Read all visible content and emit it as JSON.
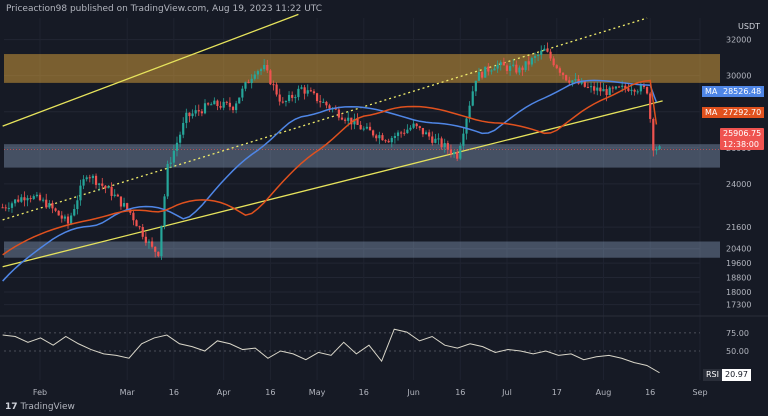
{
  "header": {
    "published": "Priceaction98 published on TradingView.com, Aug 19, 2023 11:22 UTC"
  },
  "logo": {
    "mark": "17",
    "text": "TradingView"
  },
  "colors": {
    "background": "#161a25",
    "candle_up": "#26a69a",
    "candle_down": "#ef5350",
    "ma_fast": "#4f86e6",
    "ma_slow": "#e0511e",
    "channel": "#e6e35c",
    "resistance_zone": "#f5b33d",
    "support_zone": "#9fb7d6",
    "rsi": "#d9d6c9"
  },
  "chart_data": {
    "type": "candlestick",
    "title": "",
    "y_unit": "USDT",
    "x_ticks": [
      "Feb",
      "Mar",
      "16",
      "Apr",
      "16",
      "May",
      "16",
      "Jun",
      "16",
      "Jul",
      "17",
      "Aug",
      "16",
      "Sep"
    ],
    "y_ticks": [
      32000,
      30000,
      28000,
      26000,
      24000,
      21600,
      20400,
      19600,
      18800,
      18000,
      17300
    ],
    "ylim": [
      17000,
      33200
    ],
    "price_series": {
      "dates": [
        "Jan 20",
        "Jan 28",
        "Feb 3",
        "Feb 10",
        "Feb 16",
        "Feb 24",
        "Mar 2",
        "Mar 9",
        "Mar 11",
        "Mar 14",
        "Mar 20",
        "Mar 28",
        "Apr 4",
        "Apr 11",
        "Apr 14",
        "Apr 20",
        "Apr 26",
        "May 2",
        "May 10",
        "May 16",
        "May 24",
        "Jun 1",
        "Jun 8",
        "Jun 15",
        "Jun 21",
        "Jun 27",
        "Jul 5",
        "Jul 13",
        "Jul 20",
        "Jul 27",
        "Aug 3",
        "Aug 10",
        "Aug 15",
        "Aug 17",
        "Aug 19"
      ],
      "close": [
        22700,
        23400,
        22900,
        21800,
        24600,
        23500,
        22400,
        20400,
        20200,
        24900,
        27700,
        28400,
        28300,
        30300,
        30400,
        28400,
        29300,
        28600,
        27700,
        27000,
        26500,
        27200,
        26400,
        25600,
        29900,
        30600,
        30300,
        31400,
        29900,
        29300,
        29100,
        29400,
        29200,
        26100,
        25900
      ]
    },
    "ma_fast": {
      "label": "MA",
      "value": "28526.48",
      "date_start": "Jan 20",
      "start": 18200,
      "end": 28526.48
    },
    "ma_slow": {
      "label": "MA",
      "value": "27292.70",
      "date_start": "Jan 20",
      "start": 19800,
      "end": 27292.7
    },
    "last_price": {
      "value": "25906.75",
      "countdown": "12:38:00"
    },
    "resistance_zone": [
      29600,
      31200
    ],
    "support_zones": [
      [
        24900,
        26200
      ],
      [
        19900,
        20800
      ]
    ],
    "channel_lines": [
      {
        "style": "solid",
        "from": [
          "Jan 20",
          27200
        ],
        "to": [
          "Apr 25",
          33400
        ]
      },
      {
        "style": "solid",
        "from": [
          "Jan 20",
          19400
        ],
        "to": [
          "Aug 20",
          28600
        ]
      },
      {
        "style": "dotted",
        "from": [
          "Jan 20",
          22000
        ],
        "to": [
          "Aug 15",
          33200
        ]
      },
      {
        "style": "dotted",
        "from": [
          "Jan 20",
          29800
        ],
        "to": [
          "Aug 19",
          29800
        ]
      }
    ],
    "rsi": {
      "label": "RSI",
      "value": "20.97",
      "levels": [
        "75.00",
        "50.00"
      ],
      "ylim": [
        10,
        90
      ],
      "values": [
        72,
        70,
        62,
        68,
        58,
        70,
        60,
        52,
        46,
        44,
        40,
        60,
        68,
        72,
        60,
        56,
        50,
        64,
        60,
        52,
        54,
        40,
        50,
        46,
        38,
        48,
        44,
        62,
        46,
        58,
        36,
        80,
        76,
        64,
        70,
        58,
        54,
        60,
        56,
        48,
        52,
        50,
        46,
        50,
        44,
        46,
        38,
        42,
        44,
        40,
        34,
        30,
        20
      ]
    }
  }
}
